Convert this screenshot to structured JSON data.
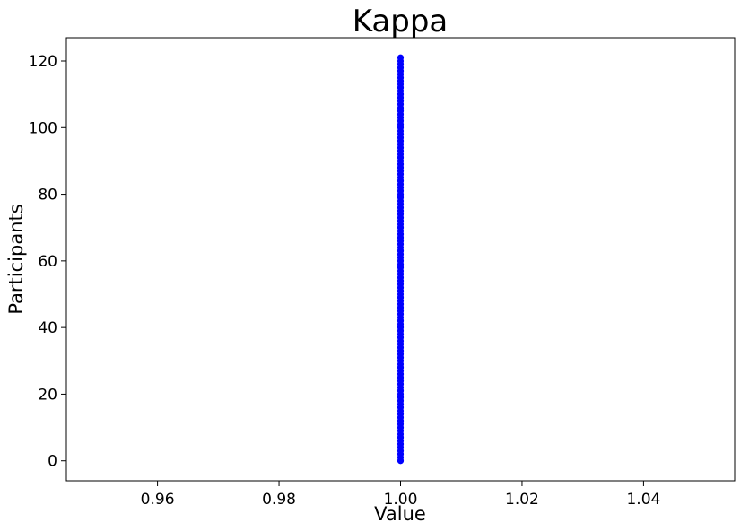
{
  "chart_data": {
    "type": "scatter",
    "title": "Kappa",
    "xlabel": "Value",
    "ylabel": "Participants",
    "xlim": [
      0.945,
      1.055
    ],
    "ylim": [
      -6,
      127
    ],
    "xticks": [
      0.96,
      0.98,
      1.0,
      1.02,
      1.04
    ],
    "xtick_labels": [
      "0.96",
      "0.98",
      "1.00",
      "1.02",
      "1.04"
    ],
    "yticks": [
      0,
      20,
      40,
      60,
      80,
      100,
      120
    ],
    "ytick_labels": [
      "0",
      "20",
      "40",
      "60",
      "80",
      "100",
      "120"
    ],
    "grid": false,
    "series": [
      {
        "color": "#0000ff",
        "marker": "circle",
        "x_constant": 1.0,
        "y_start": 0,
        "y_end": 121,
        "y_step": 1
      }
    ]
  }
}
